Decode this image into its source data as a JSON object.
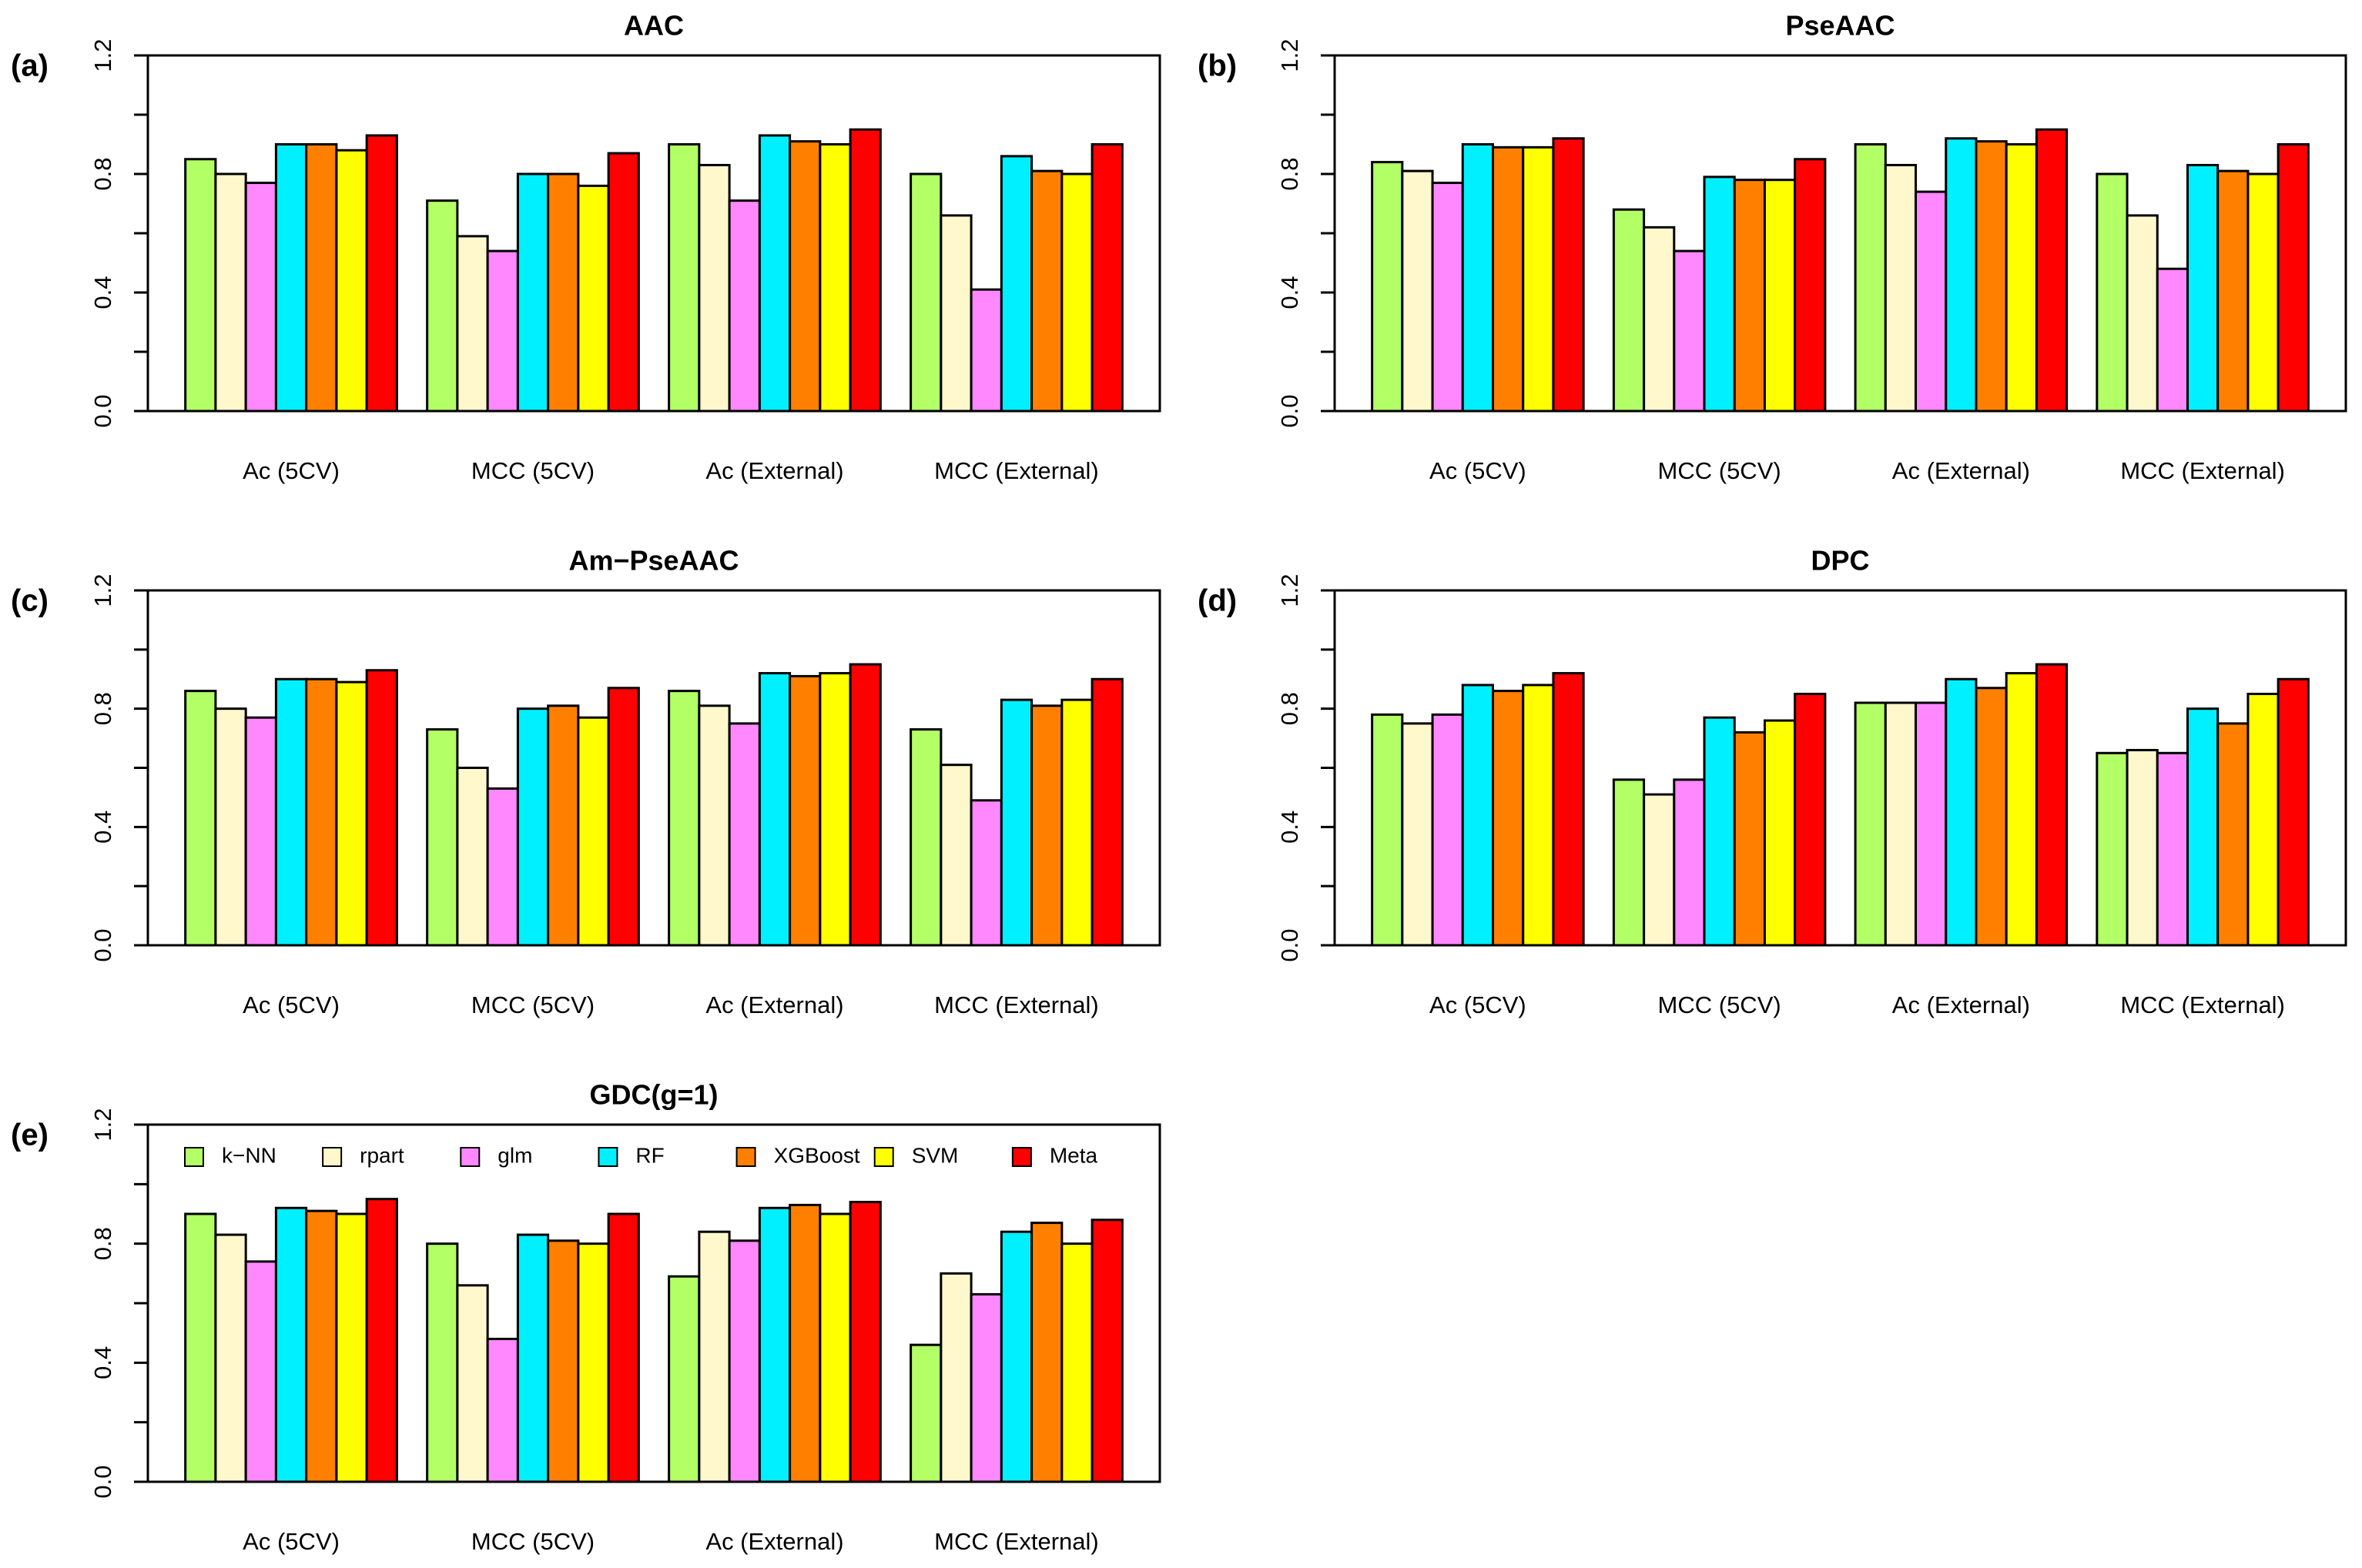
{
  "chart_data": [
    {
      "type": "bar",
      "panel": "(a)",
      "title": "AAC",
      "categories": [
        "Ac (5CV)",
        "MCC (5CV)",
        "Ac (External)",
        "MCC (External)"
      ],
      "series": [
        {
          "color": "#b3ff66",
          "values": [
            0.85,
            0.71,
            0.9,
            0.8
          ]
        },
        {
          "color": "#fff8cc",
          "values": [
            0.8,
            0.59,
            0.83,
            0.66
          ]
        },
        {
          "color": "#ff88ff",
          "values": [
            0.77,
            0.54,
            0.71,
            0.41
          ]
        },
        {
          "color": "#00f0ff",
          "values": [
            0.9,
            0.8,
            0.93,
            0.86
          ]
        },
        {
          "color": "#ff8000",
          "values": [
            0.9,
            0.8,
            0.91,
            0.81
          ]
        },
        {
          "color": "#ffff00",
          "values": [
            0.88,
            0.76,
            0.9,
            0.8
          ]
        },
        {
          "color": "#ff0000",
          "values": [
            0.93,
            0.87,
            0.95,
            0.9
          ]
        }
      ],
      "ylim": [
        0,
        1.2
      ],
      "yticks": [
        {
          "value": 0,
          "label": "0.0"
        },
        0.4,
        0.8,
        1.2
      ],
      "yminorticks": [
        0.2,
        0.6,
        1.0
      ]
    },
    {
      "type": "bar",
      "panel": "(b)",
      "title": "PseAAC",
      "categories": [
        "Ac (5CV)",
        "MCC (5CV)",
        "Ac (External)",
        "MCC (External)"
      ],
      "series": [
        {
          "color": "#b3ff66",
          "values": [
            0.84,
            0.68,
            0.9,
            0.8
          ]
        },
        {
          "color": "#fff8cc",
          "values": [
            0.81,
            0.62,
            0.83,
            0.66
          ]
        },
        {
          "color": "#ff88ff",
          "values": [
            0.77,
            0.54,
            0.74,
            0.48
          ]
        },
        {
          "color": "#00f0ff",
          "values": [
            0.9,
            0.79,
            0.92,
            0.83
          ]
        },
        {
          "color": "#ff8000",
          "values": [
            0.89,
            0.78,
            0.91,
            0.81
          ]
        },
        {
          "color": "#ffff00",
          "values": [
            0.89,
            0.78,
            0.9,
            0.8
          ]
        },
        {
          "color": "#ff0000",
          "values": [
            0.92,
            0.85,
            0.95,
            0.9
          ]
        }
      ],
      "ylim": [
        0,
        1.2
      ],
      "yticks": [
        {
          "value": 0,
          "label": "0.0"
        },
        0.4,
        0.8,
        1.2
      ],
      "yminorticks": [
        0.2,
        0.6,
        1.0
      ]
    },
    {
      "type": "bar",
      "panel": "(c)",
      "title": "Am−PseAAC",
      "categories": [
        "Ac (5CV)",
        "MCC (5CV)",
        "Ac (External)",
        "MCC (External)"
      ],
      "series": [
        {
          "color": "#b3ff66",
          "values": [
            0.86,
            0.73,
            0.86,
            0.73
          ]
        },
        {
          "color": "#fff8cc",
          "values": [
            0.8,
            0.6,
            0.81,
            0.61
          ]
        },
        {
          "color": "#ff88ff",
          "values": [
            0.77,
            0.53,
            0.75,
            0.49
          ]
        },
        {
          "color": "#00f0ff",
          "values": [
            0.9,
            0.8,
            0.92,
            0.83
          ]
        },
        {
          "color": "#ff8000",
          "values": [
            0.9,
            0.81,
            0.91,
            0.81
          ]
        },
        {
          "color": "#ffff00",
          "values": [
            0.89,
            0.77,
            0.92,
            0.83
          ]
        },
        {
          "color": "#ff0000",
          "values": [
            0.93,
            0.87,
            0.95,
            0.9
          ]
        }
      ],
      "ylim": [
        0,
        1.2
      ],
      "yticks": [
        {
          "value": 0,
          "label": "0.0"
        },
        0.4,
        0.8,
        1.2
      ],
      "yminorticks": [
        0.2,
        0.6,
        1.0
      ]
    },
    {
      "type": "bar",
      "panel": "(d)",
      "title": "DPC",
      "categories": [
        "Ac (5CV)",
        "MCC (5CV)",
        "Ac (External)",
        "MCC (External)"
      ],
      "series": [
        {
          "color": "#b3ff66",
          "values": [
            0.78,
            0.56,
            0.82,
            0.65
          ]
        },
        {
          "color": "#fff8cc",
          "values": [
            0.75,
            0.51,
            0.82,
            0.66
          ]
        },
        {
          "color": "#ff88ff",
          "values": [
            0.78,
            0.56,
            0.82,
            0.65
          ]
        },
        {
          "color": "#00f0ff",
          "values": [
            0.88,
            0.77,
            0.9,
            0.8
          ]
        },
        {
          "color": "#ff8000",
          "values": [
            0.86,
            0.72,
            0.87,
            0.75
          ]
        },
        {
          "color": "#ffff00",
          "values": [
            0.88,
            0.76,
            0.92,
            0.85
          ]
        },
        {
          "color": "#ff0000",
          "values": [
            0.92,
            0.85,
            0.95,
            0.9
          ]
        }
      ],
      "ylim": [
        0,
        1.2
      ],
      "yticks": [
        {
          "value": 0,
          "label": "0.0"
        },
        0.4,
        0.8,
        1.2
      ],
      "yminorticks": [
        0.2,
        0.6,
        1.0
      ]
    },
    {
      "type": "bar",
      "panel": "(e)",
      "title": "GDC(g=1)",
      "categories": [
        "Ac (5CV)",
        "MCC (5CV)",
        "Ac (External)",
        "MCC (External)"
      ],
      "series": [
        {
          "name": "k−NN",
          "color": "#b3ff66",
          "values": [
            0.9,
            0.8,
            0.69,
            0.46
          ]
        },
        {
          "name": "rpart",
          "color": "#fff8cc",
          "values": [
            0.83,
            0.66,
            0.84,
            0.7
          ]
        },
        {
          "name": "glm",
          "color": "#ff88ff",
          "values": [
            0.74,
            0.48,
            0.81,
            0.63
          ]
        },
        {
          "name": "RF",
          "color": "#00f0ff",
          "values": [
            0.92,
            0.83,
            0.92,
            0.84
          ]
        },
        {
          "name": "XGBoost",
          "color": "#ff8000",
          "values": [
            0.91,
            0.81,
            0.93,
            0.87
          ]
        },
        {
          "name": "SVM",
          "color": "#ffff00",
          "values": [
            0.9,
            0.8,
            0.9,
            0.8
          ]
        },
        {
          "name": "Meta",
          "color": "#ff0000",
          "values": [
            0.95,
            0.9,
            0.94,
            0.88
          ]
        }
      ],
      "ylim": [
        0,
        1.2
      ],
      "yticks": [
        {
          "value": 0,
          "label": "0.0"
        },
        0.4,
        0.8,
        1.2
      ],
      "yminorticks": [
        0.2,
        0.6,
        1.0
      ],
      "legend": "top"
    }
  ]
}
